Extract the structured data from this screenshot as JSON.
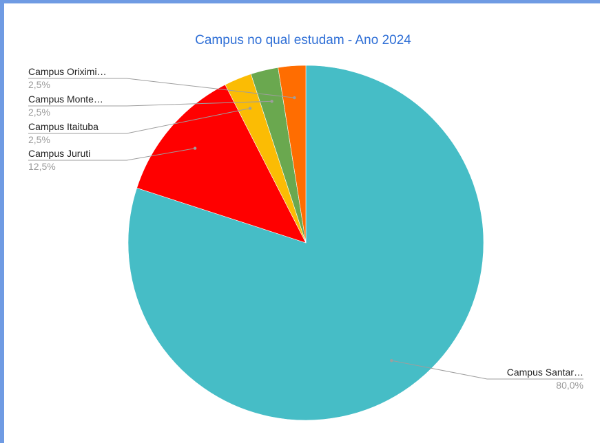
{
  "chart_data": {
    "type": "pie",
    "title": "Campus no qual estudam - Ano 2024",
    "slices": [
      {
        "label": "Campus Santar…",
        "value": 80.0,
        "value_label": "80,0%",
        "color": "#46bdc6"
      },
      {
        "label": "Campus Juruti",
        "value": 12.5,
        "value_label": "12,5%",
        "color": "#ff0000"
      },
      {
        "label": "Campus Itaituba",
        "value": 2.5,
        "value_label": "2,5%",
        "color": "#fbbc04"
      },
      {
        "label": "Campus Monte…",
        "value": 2.5,
        "value_label": "2,5%",
        "color": "#6aa84f"
      },
      {
        "label": "Campus Oriximi…",
        "value": 2.5,
        "value_label": "2,5%",
        "color": "#ff6d01"
      }
    ],
    "legend": "none"
  }
}
